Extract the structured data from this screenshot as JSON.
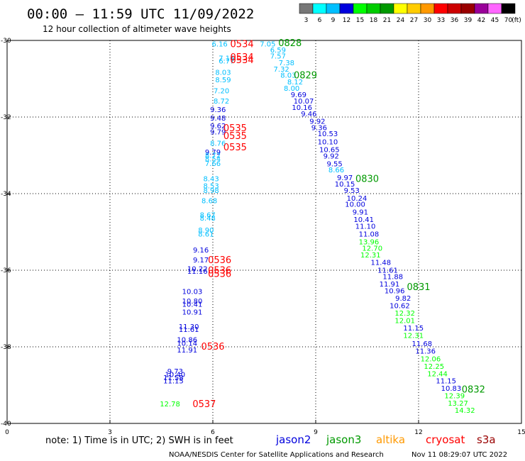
{
  "header": {
    "title": "00:00 – 11:59 UTC 11/09/2022",
    "subtitle": "12 hour collection of altimeter wave heights"
  },
  "colorbar": {
    "unit": "(ft)",
    "labels": [
      "3",
      "6",
      "9",
      "12",
      "15",
      "18",
      "21",
      "24",
      "27",
      "30",
      "33",
      "36",
      "39",
      "42",
      "45",
      "70"
    ],
    "colors": [
      "#777777",
      "#00ffff",
      "#00bfff",
      "#0000dd",
      "#00ff00",
      "#00cc00",
      "#009900",
      "#ffff00",
      "#ffcc00",
      "#ff9900",
      "#ff0000",
      "#cc0000",
      "#990000",
      "#990099",
      "#ff66ff",
      "#000000"
    ]
  },
  "footer": {
    "note": "note:  1) Time is in UTC; 2) SWH is in feet",
    "credit": "NOAA/NESDIS Center for Satellite Applications and Research",
    "timestamp": "Nov 11 08:29:07 UTC 2022"
  },
  "chart_data": {
    "type": "scatter",
    "xlim": [
      0,
      15
    ],
    "ylim": [
      -40,
      -30
    ],
    "xticks": [
      0,
      3,
      6,
      9,
      12,
      15
    ],
    "yticks": [
      -30,
      -32,
      -34,
      -36,
      -38,
      -40
    ],
    "xtick_labels": [
      "0",
      "3",
      "6",
      "9",
      "12",
      "15"
    ],
    "ytick_labels": [
      "-30",
      "-32",
      "-34",
      "-36",
      "-38",
      "-40"
    ],
    "grid": true,
    "legend": [
      {
        "name": "jason2",
        "color": "#0000dd"
      },
      {
        "name": "jason3",
        "color": "#009900"
      },
      {
        "name": "altika",
        "color": "#ff9900"
      },
      {
        "name": "cryosat",
        "color": "#ff0000"
      },
      {
        "name": "s3a",
        "color": "#990000"
      }
    ],
    "points": [
      {
        "x": 6.2,
        "y": -30.08,
        "t": "6.16",
        "c": "#00bfff"
      },
      {
        "x": 7.6,
        "y": -30.08,
        "t": "7.05",
        "c": "#00bfff"
      },
      {
        "x": 7.9,
        "y": -30.24,
        "t": "6.59",
        "c": "#00bfff"
      },
      {
        "x": 7.9,
        "y": -30.4,
        "t": "7.57",
        "c": "#00bfff"
      },
      {
        "x": 6.4,
        "y": -30.45,
        "t": "7.16",
        "c": "#00bfff"
      },
      {
        "x": 6.4,
        "y": -30.53,
        "t": "6.77",
        "c": "#00bfff"
      },
      {
        "x": 8.15,
        "y": -30.57,
        "t": "7.38",
        "c": "#00bfff"
      },
      {
        "x": 8.0,
        "y": -30.74,
        "t": "7.32",
        "c": "#00bfff"
      },
      {
        "x": 6.3,
        "y": -30.82,
        "t": "8.03",
        "c": "#00bfff"
      },
      {
        "x": 8.2,
        "y": -30.9,
        "t": "8.03",
        "c": "#00bfff"
      },
      {
        "x": 6.3,
        "y": -31.02,
        "t": "8.59",
        "c": "#00bfff"
      },
      {
        "x": 8.4,
        "y": -31.07,
        "t": "8.12",
        "c": "#00bfff"
      },
      {
        "x": 8.3,
        "y": -31.24,
        "t": "8.00",
        "c": "#00bfff"
      },
      {
        "x": 6.25,
        "y": -31.31,
        "t": "7.20",
        "c": "#00bfff"
      },
      {
        "x": 8.5,
        "y": -31.41,
        "t": "9.69",
        "c": "#0000dd"
      },
      {
        "x": 6.25,
        "y": -31.57,
        "t": "8.72",
        "c": "#00bfff"
      },
      {
        "x": 8.65,
        "y": -31.57,
        "t": "10.07",
        "c": "#0000dd"
      },
      {
        "x": 8.6,
        "y": -31.74,
        "t": "10.16",
        "c": "#0000dd"
      },
      {
        "x": 6.15,
        "y": -31.8,
        "t": "9.36",
        "c": "#0000dd"
      },
      {
        "x": 8.8,
        "y": -31.91,
        "t": "9.46",
        "c": "#0000dd"
      },
      {
        "x": 6.15,
        "y": -32.02,
        "t": "9.48",
        "c": "#0000dd"
      },
      {
        "x": 9.05,
        "y": -32.1,
        "t": "9.92",
        "c": "#0000dd"
      },
      {
        "x": 6.15,
        "y": -32.22,
        "t": "9.62",
        "c": "#0000dd"
      },
      {
        "x": 9.1,
        "y": -32.27,
        "t": "9.36",
        "c": "#0000dd"
      },
      {
        "x": 6.15,
        "y": -32.38,
        "t": "9.79",
        "c": "#0000dd"
      },
      {
        "x": 9.35,
        "y": -32.43,
        "t": "10.53",
        "c": "#0000dd"
      },
      {
        "x": 6.15,
        "y": -32.68,
        "t": "8.76",
        "c": "#00bfff"
      },
      {
        "x": 9.35,
        "y": -32.64,
        "t": "10.10",
        "c": "#0000dd"
      },
      {
        "x": 9.4,
        "y": -32.84,
        "t": "10.65",
        "c": "#0000dd"
      },
      {
        "x": 6.0,
        "y": -32.91,
        "t": "9.79",
        "c": "#0000dd"
      },
      {
        "x": 6.0,
        "y": -32.99,
        "t": "8.72",
        "c": "#00bfff"
      },
      {
        "x": 9.45,
        "y": -33.01,
        "t": "9.92",
        "c": "#0000dd"
      },
      {
        "x": 6.0,
        "y": -33.08,
        "t": "8.54",
        "c": "#00bfff"
      },
      {
        "x": 6.0,
        "y": -33.2,
        "t": "7.66",
        "c": "#00bfff"
      },
      {
        "x": 9.55,
        "y": -33.21,
        "t": "9.55",
        "c": "#0000dd"
      },
      {
        "x": 9.6,
        "y": -33.37,
        "t": "8.66",
        "c": "#00bfff"
      },
      {
        "x": 9.85,
        "y": -33.57,
        "t": "9.97",
        "c": "#0000dd"
      },
      {
        "x": 5.95,
        "y": -33.6,
        "t": "8.43",
        "c": "#00bfff"
      },
      {
        "x": 9.85,
        "y": -33.74,
        "t": "10.15",
        "c": "#0000dd"
      },
      {
        "x": 5.95,
        "y": -33.79,
        "t": "8.53",
        "c": "#00bfff"
      },
      {
        "x": 5.95,
        "y": -33.91,
        "t": "8.98",
        "c": "#00bfff"
      },
      {
        "x": 10.05,
        "y": -33.91,
        "t": "9.53",
        "c": "#0000dd"
      },
      {
        "x": 10.2,
        "y": -34.11,
        "t": "10.24",
        "c": "#0000dd"
      },
      {
        "x": 5.9,
        "y": -34.18,
        "t": "8.68",
        "c": "#00bfff"
      },
      {
        "x": 10.15,
        "y": -34.27,
        "t": "10.00",
        "c": "#0000dd"
      },
      {
        "x": 10.3,
        "y": -34.47,
        "t": "9.91",
        "c": "#0000dd"
      },
      {
        "x": 5.85,
        "y": -34.55,
        "t": "8.67",
        "c": "#00bfff"
      },
      {
        "x": 5.85,
        "y": -34.63,
        "t": "8.48",
        "c": "#00bfff"
      },
      {
        "x": 10.4,
        "y": -34.67,
        "t": "10.41",
        "c": "#0000dd"
      },
      {
        "x": 10.45,
        "y": -34.84,
        "t": "11.10",
        "c": "#0000dd"
      },
      {
        "x": 5.8,
        "y": -34.94,
        "t": "8.90",
        "c": "#00bfff"
      },
      {
        "x": 5.8,
        "y": -35.05,
        "t": "8.61",
        "c": "#00bfff"
      },
      {
        "x": 10.55,
        "y": -35.05,
        "t": "11.08",
        "c": "#0000dd"
      },
      {
        "x": 10.55,
        "y": -35.25,
        "t": "13.96",
        "c": "#00ff00"
      },
      {
        "x": 10.65,
        "y": -35.42,
        "t": "12.70",
        "c": "#00ff00"
      },
      {
        "x": 5.65,
        "y": -35.46,
        "t": "9.16",
        "c": "#0000dd"
      },
      {
        "x": 10.6,
        "y": -35.59,
        "t": "12.31",
        "c": "#00ff00"
      },
      {
        "x": 5.65,
        "y": -35.72,
        "t": "9.17",
        "c": "#0000dd"
      },
      {
        "x": 10.9,
        "y": -35.79,
        "t": "11.48",
        "c": "#0000dd"
      },
      {
        "x": 5.55,
        "y": -35.95,
        "t": "10.22",
        "c": "#0000dd"
      },
      {
        "x": 5.55,
        "y": -36.02,
        "t": "11.16",
        "c": "#0000dd"
      },
      {
        "x": 11.1,
        "y": -35.99,
        "t": "11.61",
        "c": "#0000dd"
      },
      {
        "x": 11.25,
        "y": -36.16,
        "t": "11.88",
        "c": "#0000dd"
      },
      {
        "x": 11.15,
        "y": -36.35,
        "t": "11.91",
        "c": "#0000dd"
      },
      {
        "x": 11.3,
        "y": -36.53,
        "t": "10.96",
        "c": "#0000dd"
      },
      {
        "x": 5.4,
        "y": -36.55,
        "t": "10.03",
        "c": "#0000dd"
      },
      {
        "x": 11.55,
        "y": -36.72,
        "t": "9.82",
        "c": "#0000dd"
      },
      {
        "x": 5.4,
        "y": -36.8,
        "t": "10.80",
        "c": "#0000dd"
      },
      {
        "x": 5.4,
        "y": -36.88,
        "t": "10.41",
        "c": "#0000dd"
      },
      {
        "x": 11.45,
        "y": -36.92,
        "t": "10.62",
        "c": "#0000dd"
      },
      {
        "x": 5.4,
        "y": -37.08,
        "t": "10.91",
        "c": "#0000dd"
      },
      {
        "x": 11.6,
        "y": -37.11,
        "t": "12.32",
        "c": "#00ff00"
      },
      {
        "x": 11.6,
        "y": -37.31,
        "t": "12.01",
        "c": "#00ff00"
      },
      {
        "x": 5.3,
        "y": -37.46,
        "t": "11.30",
        "c": "#0000dd"
      },
      {
        "x": 11.85,
        "y": -37.5,
        "t": "11.15",
        "c": "#0000dd"
      },
      {
        "x": 5.3,
        "y": -37.54,
        "t": "11.61",
        "c": "#0000dd"
      },
      {
        "x": 11.85,
        "y": -37.69,
        "t": "12.31",
        "c": "#00ff00"
      },
      {
        "x": 5.25,
        "y": -37.81,
        "t": "10.86",
        "c": "#0000dd"
      },
      {
        "x": 5.25,
        "y": -37.9,
        "t": "10.14",
        "c": "#0000dd"
      },
      {
        "x": 12.1,
        "y": -37.91,
        "t": "11.68",
        "c": "#0000dd"
      },
      {
        "x": 5.25,
        "y": -38.07,
        "t": "11.91",
        "c": "#0000dd"
      },
      {
        "x": 12.2,
        "y": -38.1,
        "t": "11.36",
        "c": "#0000dd"
      },
      {
        "x": 12.35,
        "y": -38.31,
        "t": "12.06",
        "c": "#00ff00"
      },
      {
        "x": 12.45,
        "y": -38.5,
        "t": "12.25",
        "c": "#00ff00"
      },
      {
        "x": 4.9,
        "y": -38.63,
        "t": "9.73",
        "c": "#0000dd"
      },
      {
        "x": 12.55,
        "y": -38.69,
        "t": "12.44",
        "c": "#00ff00"
      },
      {
        "x": 4.9,
        "y": -38.71,
        "t": "10.40",
        "c": "#0000dd"
      },
      {
        "x": 4.85,
        "y": -38.8,
        "t": "11.58",
        "c": "#0000dd"
      },
      {
        "x": 4.85,
        "y": -38.88,
        "t": "11.15",
        "c": "#0000dd"
      },
      {
        "x": 12.8,
        "y": -38.88,
        "t": "11.15",
        "c": "#0000dd"
      },
      {
        "x": 12.95,
        "y": -39.07,
        "t": "10.83",
        "c": "#0000dd"
      },
      {
        "x": 13.05,
        "y": -39.27,
        "t": "12.39",
        "c": "#00ff00"
      },
      {
        "x": 13.15,
        "y": -39.46,
        "t": "13.27",
        "c": "#00ff00"
      },
      {
        "x": 4.75,
        "y": -39.48,
        "t": "12.78",
        "c": "#00ff00"
      },
      {
        "x": 13.35,
        "y": -39.65,
        "t": "14.32",
        "c": "#00ff00"
      }
    ],
    "time_labels": [
      {
        "x": 6.85,
        "y": -30.08,
        "t": "0534",
        "c": "#ff0000"
      },
      {
        "x": 8.25,
        "y": -30.06,
        "t": "0828",
        "c": "#009900"
      },
      {
        "x": 6.85,
        "y": -30.43,
        "t": "0534",
        "c": "#ff0000"
      },
      {
        "x": 6.85,
        "y": -30.5,
        "t": "0534",
        "c": "#ff0000"
      },
      {
        "x": 8.7,
        "y": -30.9,
        "t": "0829",
        "c": "#009900"
      },
      {
        "x": 6.65,
        "y": -32.28,
        "t": "0535",
        "c": "#ff0000"
      },
      {
        "x": 6.65,
        "y": -32.48,
        "t": "0535",
        "c": "#ff0000"
      },
      {
        "x": 6.65,
        "y": -32.78,
        "t": "0535",
        "c": "#ff0000"
      },
      {
        "x": 10.5,
        "y": -33.6,
        "t": "0830",
        "c": "#009900"
      },
      {
        "x": 6.2,
        "y": -35.72,
        "t": "0536",
        "c": "#ff0000"
      },
      {
        "x": 6.2,
        "y": -35.99,
        "t": "0536",
        "c": "#ff0000"
      },
      {
        "x": 6.2,
        "y": -36.08,
        "t": "0536",
        "c": "#ff0000"
      },
      {
        "x": 12.0,
        "y": -36.43,
        "t": "0831",
        "c": "#009900"
      },
      {
        "x": 6.0,
        "y": -37.98,
        "t": "0536",
        "c": "#ff0000"
      },
      {
        "x": 13.6,
        "y": -39.1,
        "t": "0832",
        "c": "#009900"
      },
      {
        "x": 5.75,
        "y": -39.48,
        "t": "0537",
        "c": "#ff0000"
      }
    ]
  }
}
